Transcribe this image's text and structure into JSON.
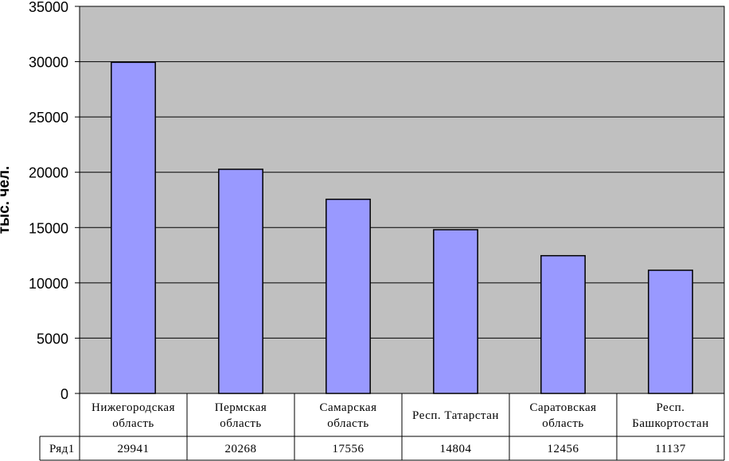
{
  "chart_data": {
    "type": "bar",
    "categories": [
      [
        "Нижегородская",
        "область"
      ],
      [
        "Пермская",
        "область"
      ],
      [
        "Самарская",
        "область"
      ],
      [
        "Респ. Татарстан"
      ],
      [
        "Саратовская",
        "область"
      ],
      [
        "Респ.",
        "Башкортостан"
      ]
    ],
    "series": [
      {
        "name": "Ряд1",
        "values": [
          29941,
          20268,
          17556,
          14804,
          12456,
          11137
        ],
        "color": "#9999ff"
      }
    ],
    "value_labels": [
      "29941",
      "20268",
      "17556",
      "14804",
      "12456",
      "11137"
    ],
    "ylabel": "тыс. чел.",
    "ylim": [
      0,
      35000
    ],
    "yticks": [
      0,
      5000,
      10000,
      15000,
      20000,
      25000,
      30000,
      35000
    ],
    "yticklabels": [
      "0",
      "5000",
      "10000",
      "15000",
      "20000",
      "25000",
      "30000",
      "35000"
    ],
    "grid": true,
    "legend": "data-table",
    "plot_background": "#c0c0c0"
  }
}
